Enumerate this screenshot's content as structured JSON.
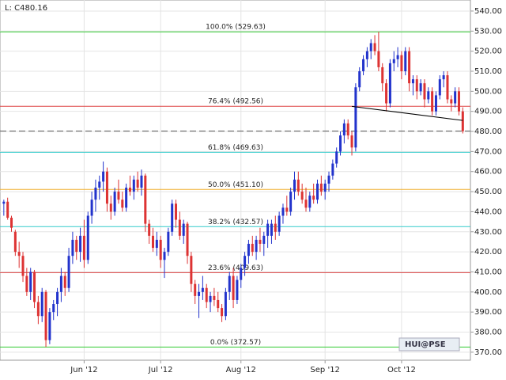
{
  "chart_data": {
    "type": "candlestick",
    "title": "L: C480.16",
    "watermark": "HUI@PSE",
    "up_color": "#2233cc",
    "down_color": "#dd3333",
    "grid": true,
    "ylim": [
      366,
      545.5
    ],
    "yticks": [
      370,
      380,
      390,
      400,
      410,
      420,
      430,
      440,
      450,
      460,
      470,
      480,
      490,
      500,
      510,
      520,
      530,
      540
    ],
    "yticks_label_format": "decimal2",
    "xlim": [
      -1,
      122
    ],
    "xticks": [
      {
        "value": 21,
        "label": "Jun '12"
      },
      {
        "value": 41,
        "label": "Jul '12"
      },
      {
        "value": 62,
        "label": "Aug '12"
      },
      {
        "value": 84,
        "label": "Sep '12"
      },
      {
        "value": 104,
        "label": "Oct '12"
      }
    ],
    "fib_levels": [
      {
        "value": 529.63,
        "label": "100.0% (529.63)",
        "color": "#33cc33"
      },
      {
        "value": 492.56,
        "label": "76.4% (492.56)",
        "color": "#dd4444"
      },
      {
        "value": 469.63,
        "label": "61.8% (469.63)",
        "color": "#33cccc"
      },
      {
        "value": 451.1,
        "label": "50.0% (451.10)",
        "color": "#f0b030"
      },
      {
        "value": 432.57,
        "label": "38.2% (432.57)",
        "color": "#33cccc"
      },
      {
        "value": 409.63,
        "label": "23.6% (409.63)",
        "color": "#dd4444"
      },
      {
        "value": 372.57,
        "label": "0.0% (372.57)",
        "color": "#33cc33"
      }
    ],
    "trendline": {
      "x": [
        91,
        120
      ],
      "y": [
        492.5,
        485.5
      ]
    },
    "ohlc": [
      [
        444,
        446,
        438,
        445
      ],
      [
        445,
        447,
        436,
        437
      ],
      [
        437,
        438,
        430,
        432
      ],
      [
        430,
        431,
        418,
        420
      ],
      [
        420,
        425,
        412,
        418
      ],
      [
        418,
        420,
        405,
        408
      ],
      [
        408,
        412,
        398,
        400
      ],
      [
        400,
        412,
        396,
        410
      ],
      [
        410,
        411,
        392,
        395
      ],
      [
        395,
        398,
        384,
        388
      ],
      [
        388,
        402,
        385,
        400
      ],
      [
        400,
        401,
        372.57,
        376
      ],
      [
        376,
        392,
        374,
        390
      ],
      [
        390,
        396,
        386,
        394
      ],
      [
        394,
        402,
        388,
        400
      ],
      [
        400,
        412,
        395,
        408
      ],
      [
        408,
        410,
        398,
        402
      ],
      [
        402,
        422,
        400,
        418
      ],
      [
        418,
        430,
        414,
        426
      ],
      [
        426,
        428,
        416,
        420
      ],
      [
        420,
        432,
        415,
        428
      ],
      [
        428,
        436,
        412,
        416
      ],
      [
        416,
        440,
        414,
        438
      ],
      [
        438,
        450,
        434,
        446
      ],
      [
        446,
        456,
        440,
        452
      ],
      [
        452,
        458,
        446,
        455
      ],
      [
        455,
        465,
        450,
        460
      ],
      [
        460,
        462,
        440,
        444
      ],
      [
        444,
        448,
        436,
        440
      ],
      [
        440,
        452,
        438,
        450
      ],
      [
        450,
        456,
        444,
        446
      ],
      [
        446,
        450,
        440,
        442
      ],
      [
        442,
        454,
        440,
        452
      ],
      [
        452,
        458,
        448,
        450
      ],
      [
        450,
        458,
        446,
        456
      ],
      [
        456,
        460,
        450,
        452
      ],
      [
        452,
        461,
        448,
        458
      ],
      [
        458,
        459,
        430,
        434
      ],
      [
        434,
        436,
        424,
        428
      ],
      [
        428,
        432,
        420,
        422
      ],
      [
        422,
        430,
        418,
        426
      ],
      [
        426,
        428,
        412,
        416
      ],
      [
        416,
        422,
        407,
        420
      ],
      [
        420,
        432,
        418,
        430
      ],
      [
        430,
        446,
        428,
        444
      ],
      [
        444,
        446,
        432,
        436
      ],
      [
        436,
        440,
        426,
        428
      ],
      [
        428,
        436,
        424,
        434
      ],
      [
        434,
        435,
        414,
        418
      ],
      [
        418,
        420,
        400,
        404
      ],
      [
        404,
        406,
        394,
        398
      ],
      [
        398,
        404,
        387,
        400
      ],
      [
        400,
        408,
        396,
        402
      ],
      [
        402,
        404,
        392,
        395
      ],
      [
        395,
        400,
        390,
        398
      ],
      [
        398,
        402,
        393,
        396
      ],
      [
        396,
        400,
        390,
        392
      ],
      [
        392,
        394,
        385,
        388
      ],
      [
        388,
        402,
        386,
        400
      ],
      [
        400,
        410,
        396,
        408
      ],
      [
        408,
        412,
        392,
        396
      ],
      [
        396,
        408,
        394,
        406
      ],
      [
        406,
        414,
        402,
        412
      ],
      [
        412,
        420,
        408,
        418
      ],
      [
        418,
        426,
        414,
        424
      ],
      [
        424,
        428,
        418,
        420
      ],
      [
        420,
        428,
        416,
        426
      ],
      [
        426,
        432,
        420,
        424
      ],
      [
        424,
        430,
        418,
        428
      ],
      [
        428,
        436,
        422,
        434
      ],
      [
        428,
        436,
        424,
        434
      ],
      [
        434,
        438,
        426,
        430
      ],
      [
        430,
        440,
        428,
        438
      ],
      [
        438,
        444,
        434,
        442
      ],
      [
        442,
        448,
        438,
        440
      ],
      [
        440,
        452,
        438,
        450
      ],
      [
        450,
        460,
        446,
        456
      ],
      [
        456,
        460,
        448,
        450
      ],
      [
        450,
        454,
        444,
        446
      ],
      [
        446,
        452,
        440,
        442
      ],
      [
        442,
        450,
        440,
        448
      ],
      [
        448,
        454,
        444,
        446
      ],
      [
        446,
        456,
        444,
        454
      ],
      [
        454,
        458,
        448,
        450
      ],
      [
        450,
        456,
        446,
        454
      ],
      [
        454,
        460,
        450,
        458
      ],
      [
        458,
        466,
        456,
        464
      ],
      [
        464,
        472,
        462,
        470
      ],
      [
        470,
        480,
        468,
        478
      ],
      [
        478,
        486,
        474,
        484
      ],
      [
        484,
        486,
        476,
        478
      ],
      [
        478,
        480,
        468,
        472
      ],
      [
        472,
        504,
        470,
        502
      ],
      [
        502,
        512,
        500,
        510
      ],
      [
        510,
        518,
        508,
        516
      ],
      [
        516,
        522,
        512,
        520
      ],
      [
        520,
        526,
        516,
        524
      ],
      [
        524,
        528,
        518,
        520
      ],
      [
        520,
        529.63,
        510,
        512
      ],
      [
        512,
        514,
        500,
        504
      ],
      [
        504,
        506,
        490,
        494
      ],
      [
        494,
        516,
        492,
        514
      ],
      [
        514,
        520,
        510,
        516
      ],
      [
        516,
        522,
        512,
        518
      ],
      [
        518,
        520,
        506,
        510
      ],
      [
        510,
        522,
        508,
        520
      ],
      [
        520,
        522,
        500,
        504
      ],
      [
        504,
        508,
        498,
        506
      ],
      [
        506,
        508,
        496,
        500
      ],
      [
        500,
        506,
        498,
        504
      ],
      [
        504,
        506,
        492,
        496
      ],
      [
        496,
        502,
        494,
        500
      ],
      [
        500,
        502,
        488,
        490
      ],
      [
        490,
        500,
        488,
        498
      ],
      [
        498,
        508,
        496,
        506
      ],
      [
        506,
        510,
        502,
        508
      ],
      [
        508,
        510,
        494,
        496
      ],
      [
        496,
        498,
        490,
        494
      ],
      [
        494,
        502,
        492,
        500
      ],
      [
        500,
        502,
        488,
        490
      ],
      [
        490,
        492,
        479,
        480.16
      ]
    ]
  }
}
